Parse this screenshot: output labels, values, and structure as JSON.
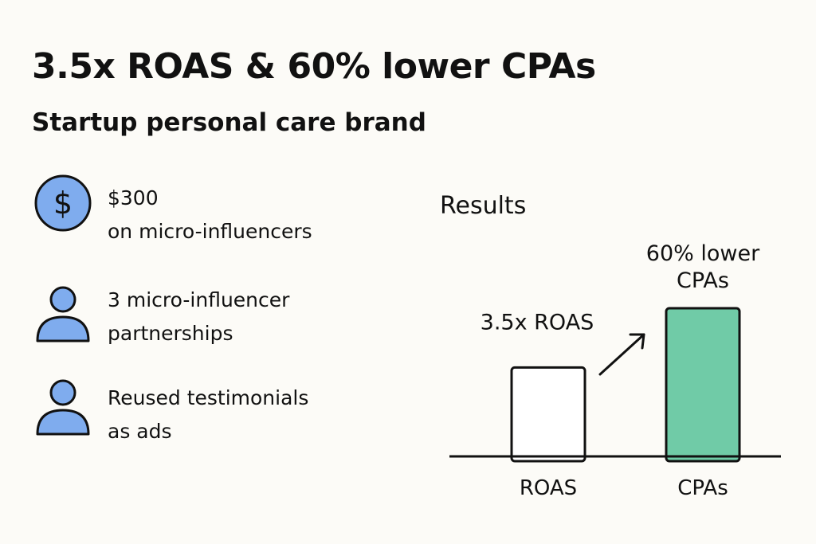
{
  "header": {
    "title": "3.5x ROAS & 60% lower CPAs",
    "subtitle": "Startup personal care brand"
  },
  "features": [
    {
      "icon": "dollar-icon",
      "lines": [
        "$300",
        "on micro-influencers"
      ]
    },
    {
      "icon": "person-icon",
      "lines": [
        "3 micro-influencer",
        "partnerships"
      ]
    },
    {
      "icon": "person-icon",
      "lines": [
        "Reused testimonials",
        "as ads"
      ]
    }
  ],
  "colors": {
    "icon_fill": "#7facee",
    "cpa_bar": "#70cba7",
    "roas_bar": "#ffffff",
    "stroke": "#111111",
    "background": "#fcfbf7"
  },
  "chart_data": {
    "type": "bar",
    "title": "Results",
    "categories": [
      "ROAS",
      "CPAs"
    ],
    "values": [
      0.6,
      1.0
    ],
    "value_note": "relative bar heights; axis unlabeled",
    "data_labels": [
      [
        "3.5x ROAS"
      ],
      [
        "60% lower",
        "CPAs"
      ]
    ],
    "annotation": "arrow-up-right",
    "grid": false
  }
}
